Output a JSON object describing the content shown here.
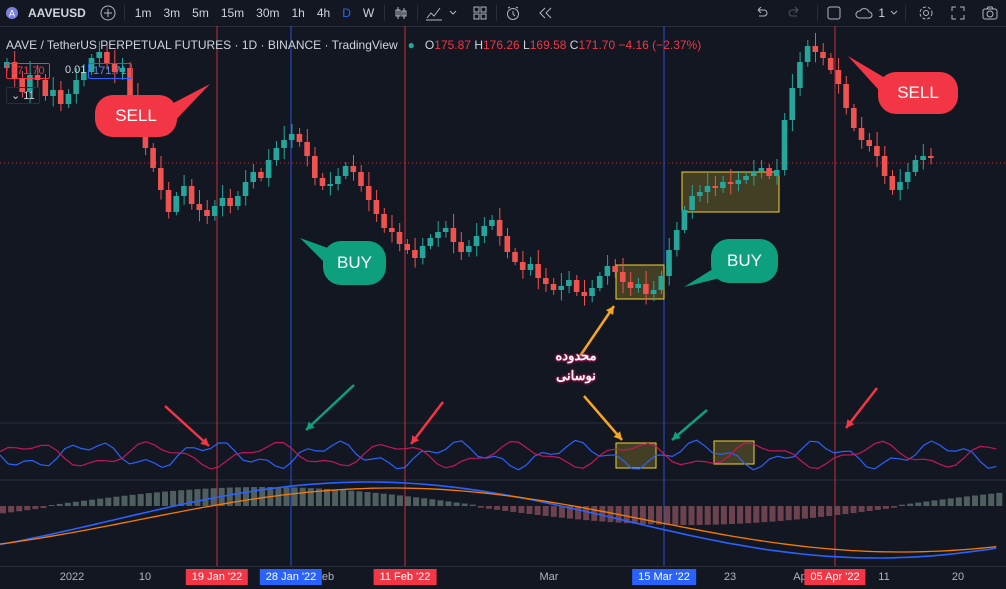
{
  "toolbar": {
    "symbol": "AAVEUSD",
    "intervals": [
      "1m",
      "3m",
      "5m",
      "15m",
      "30m",
      "1h",
      "4h",
      "D",
      "W"
    ],
    "active_interval": "D",
    "counter": "1"
  },
  "legend": {
    "title": "AAVE / TetherUS PERPETUAL FUTURES · 1D · BINANCE · TradingView",
    "o_label": "O",
    "o": "175.87",
    "h_label": "H",
    "h": "176.26",
    "l_label": "L",
    "l": "169.58",
    "c_label": "C",
    "c": "171.70",
    "change": "−4.16 (−2.37%)",
    "sell_price": "171.70",
    "spread": "0.01",
    "buy_price": "171.71",
    "collapse": "11"
  },
  "annotations": {
    "sell": "SELL",
    "buy": "BUY",
    "range_text_1": "محدوده",
    "range_text_2": "نوسانی"
  },
  "axis": {
    "ticks": [
      "2022",
      "10",
      "eb",
      "Mar",
      "23",
      "Ap",
      "11",
      "20"
    ],
    "date_labels": [
      "19 Jan '22",
      "28 Jan '22",
      "11 Feb '22",
      "15 Mar '22",
      "05 Apr '22"
    ]
  },
  "colors": {
    "up": "#26a69a",
    "down": "#ef5350",
    "sell_line": "#f23645",
    "buy_line": "#2962ff",
    "range_box": "#f0d030",
    "arrow_red": "#f23645",
    "arrow_green": "#0e9f7e",
    "arrow_orange": "#f5a623",
    "osc_blue": "#2962ff",
    "osc_pink": "#c2185b",
    "macd_orange": "#f57c00"
  }
}
